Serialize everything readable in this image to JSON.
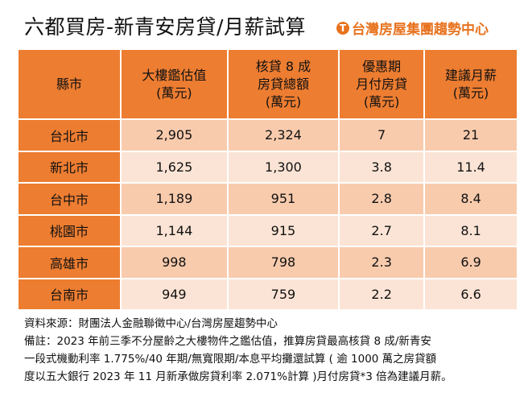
{
  "title": "六都買房-新青安房貸/月薪試算",
  "logo": {
    "icon": "t-circle-logo-icon",
    "text": "台灣房屋集團趨勢中心",
    "color": "#E8731F"
  },
  "colors": {
    "header": "#ED7D31",
    "row_odd": "#F8CBAD",
    "row_even": "#FBE4D5"
  },
  "table": {
    "headers": [
      [
        "縣市"
      ],
      [
        "大樓鑑估值",
        "(萬元)"
      ],
      [
        "核貸 8 成",
        "房貸總額",
        "(萬元)"
      ],
      [
        "優惠期",
        "月付房貸",
        "(萬元)"
      ],
      [
        "建議月薪",
        "(萬元)"
      ]
    ],
    "rows": [
      [
        "台北市",
        "2,905",
        "2,324",
        "7",
        "21"
      ],
      [
        "新北市",
        "1,625",
        "1,300",
        "3.8",
        "11.4"
      ],
      [
        "台中市",
        "1,189",
        "951",
        "2.8",
        "8.4"
      ],
      [
        "桃園市",
        "1,144",
        "915",
        "2.7",
        "8.1"
      ],
      [
        "高雄市",
        "998",
        "798",
        "2.3",
        "6.9"
      ],
      [
        "台南市",
        "949",
        "759",
        "2.2",
        "6.6"
      ]
    ]
  },
  "notes": [
    "資料來源：財團法人金融聯徵中心/台灣房屋趨勢中心",
    "備註：2023 年前三季不分屋齡之大樓物件之鑑估值，推算房貸最高核貸 8 成/新青安",
    "一段式機動利率 1.775%/40 年期/無寬限期/本息平均攤還試算 ( 逾 1000 萬之房貸額",
    "度以五大銀行 2023 年 11 月新承做房貸利率 2.071%計算 )月付房貸*3 倍為建議月薪。"
  ]
}
